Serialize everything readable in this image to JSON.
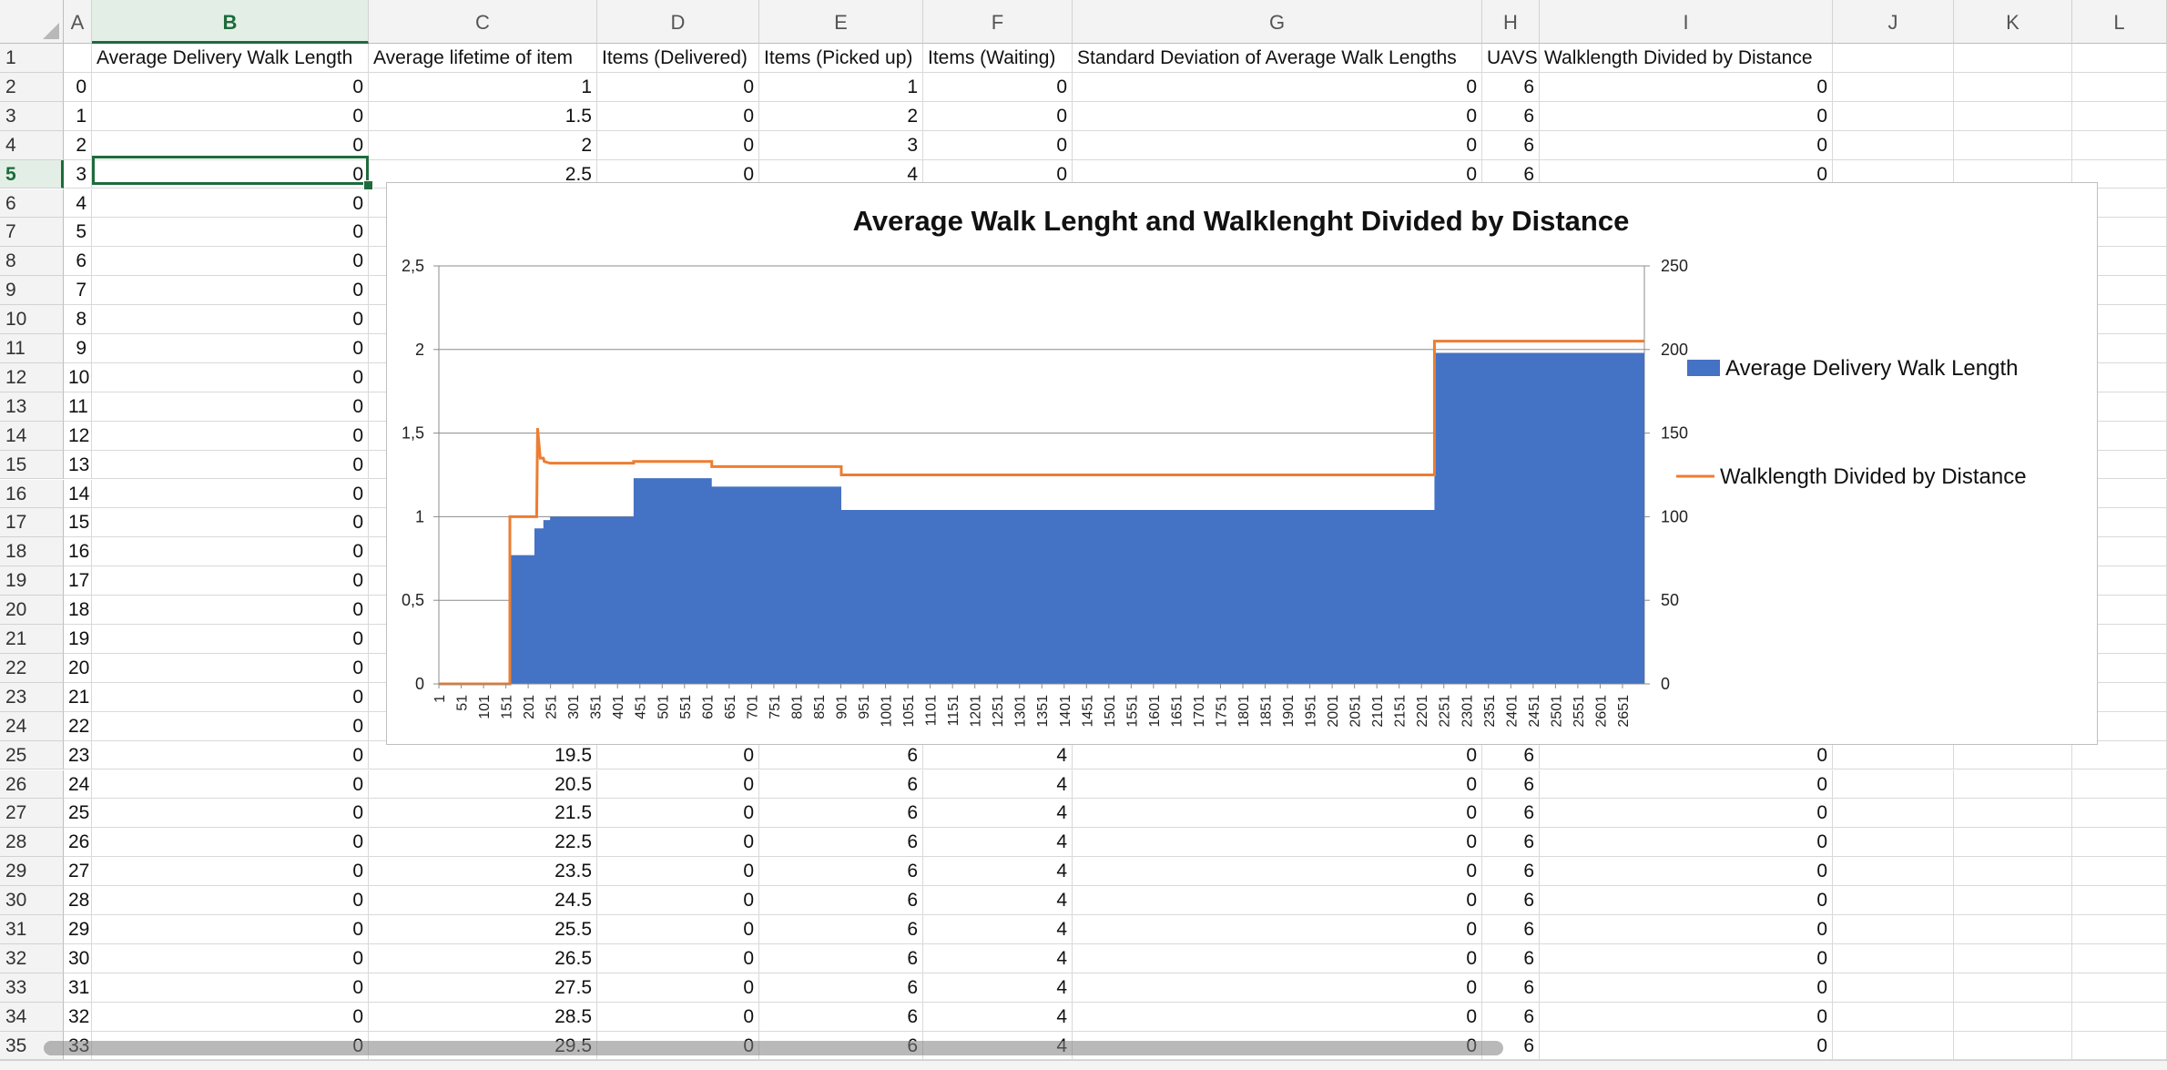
{
  "sheet": {
    "columns": [
      "A",
      "B",
      "C",
      "D",
      "E",
      "F",
      "G",
      "H",
      "I",
      "J",
      "K",
      "L"
    ],
    "selected_column": "B",
    "selected_row": "5",
    "header_row": [
      "",
      "Average Delivery Walk Length",
      "Average lifetime of item",
      "Items (Delivered)",
      "Items (Picked up)",
      "Items (Waiting)",
      "Standard Deviation of Average Walk Lengths",
      "UAVS",
      "Walklength Divided by Distance",
      "",
      "",
      ""
    ],
    "rows": [
      {
        "num": "1",
        "cells": [
          "",
          "",
          "",
          "",
          "",
          "",
          "",
          "",
          "",
          "",
          "",
          ""
        ]
      },
      {
        "num": "2",
        "cells": [
          "0",
          "0",
          "1",
          "0",
          "1",
          "0",
          "0",
          "6",
          "0",
          "",
          "",
          ""
        ]
      },
      {
        "num": "3",
        "cells": [
          "1",
          "0",
          "1.5",
          "0",
          "2",
          "0",
          "0",
          "6",
          "0",
          "",
          "",
          ""
        ]
      },
      {
        "num": "4",
        "cells": [
          "2",
          "0",
          "2",
          "0",
          "3",
          "0",
          "0",
          "6",
          "0",
          "",
          "",
          ""
        ]
      },
      {
        "num": "5",
        "cells": [
          "3",
          "0",
          "2.5",
          "0",
          "4",
          "0",
          "0",
          "6",
          "0",
          "",
          "",
          ""
        ]
      },
      {
        "num": "6",
        "cells": [
          "4",
          "0",
          "",
          "",
          "",
          "",
          "",
          "",
          "",
          "",
          "",
          ""
        ]
      },
      {
        "num": "7",
        "cells": [
          "5",
          "0",
          "",
          "",
          "",
          "",
          "",
          "",
          "",
          "",
          "",
          ""
        ]
      },
      {
        "num": "8",
        "cells": [
          "6",
          "0",
          "",
          "",
          "",
          "",
          "",
          "",
          "",
          "",
          "",
          ""
        ]
      },
      {
        "num": "9",
        "cells": [
          "7",
          "0",
          "",
          "",
          "",
          "",
          "",
          "",
          "",
          "",
          "",
          ""
        ]
      },
      {
        "num": "10",
        "cells": [
          "8",
          "0",
          "",
          "",
          "",
          "",
          "",
          "",
          "",
          "",
          "",
          ""
        ]
      },
      {
        "num": "11",
        "cells": [
          "9",
          "0",
          "",
          "",
          "",
          "",
          "",
          "",
          "",
          "",
          "",
          ""
        ]
      },
      {
        "num": "12",
        "cells": [
          "10",
          "0",
          "",
          "",
          "",
          "",
          "",
          "",
          "",
          "",
          "",
          ""
        ]
      },
      {
        "num": "13",
        "cells": [
          "11",
          "0",
          "",
          "",
          "",
          "",
          "",
          "",
          "",
          "",
          "",
          ""
        ]
      },
      {
        "num": "14",
        "cells": [
          "12",
          "0",
          "",
          "",
          "",
          "",
          "",
          "",
          "",
          "",
          "",
          ""
        ]
      },
      {
        "num": "15",
        "cells": [
          "13",
          "0",
          "",
          "",
          "",
          "",
          "",
          "",
          "",
          "",
          "",
          ""
        ]
      },
      {
        "num": "16",
        "cells": [
          "14",
          "0",
          "",
          "",
          "",
          "",
          "",
          "",
          "",
          "",
          "",
          ""
        ]
      },
      {
        "num": "17",
        "cells": [
          "15",
          "0",
          "",
          "",
          "",
          "",
          "",
          "",
          "",
          "",
          "",
          ""
        ]
      },
      {
        "num": "18",
        "cells": [
          "16",
          "0",
          "",
          "",
          "",
          "",
          "",
          "",
          "",
          "",
          "",
          ""
        ]
      },
      {
        "num": "19",
        "cells": [
          "17",
          "0",
          "",
          "",
          "",
          "",
          "",
          "",
          "",
          "",
          "",
          ""
        ]
      },
      {
        "num": "20",
        "cells": [
          "18",
          "0",
          "",
          "",
          "",
          "",
          "",
          "",
          "",
          "",
          "",
          ""
        ]
      },
      {
        "num": "21",
        "cells": [
          "19",
          "0",
          "",
          "",
          "",
          "",
          "",
          "",
          "",
          "",
          "",
          ""
        ]
      },
      {
        "num": "22",
        "cells": [
          "20",
          "0",
          "",
          "",
          "",
          "",
          "",
          "",
          "",
          "",
          "",
          ""
        ]
      },
      {
        "num": "23",
        "cells": [
          "21",
          "0",
          "",
          "",
          "",
          "",
          "",
          "",
          "",
          "",
          "",
          ""
        ]
      },
      {
        "num": "24",
        "cells": [
          "22",
          "0",
          "",
          "",
          "",
          "",
          "",
          "",
          "",
          "",
          "",
          ""
        ]
      },
      {
        "num": "25",
        "cells": [
          "23",
          "0",
          "19.5",
          "0",
          "6",
          "4",
          "0",
          "6",
          "0",
          "",
          "",
          ""
        ]
      },
      {
        "num": "26",
        "cells": [
          "24",
          "0",
          "20.5",
          "0",
          "6",
          "4",
          "0",
          "6",
          "0",
          "",
          "",
          ""
        ]
      },
      {
        "num": "27",
        "cells": [
          "25",
          "0",
          "21.5",
          "0",
          "6",
          "4",
          "0",
          "6",
          "0",
          "",
          "",
          ""
        ]
      },
      {
        "num": "28",
        "cells": [
          "26",
          "0",
          "22.5",
          "0",
          "6",
          "4",
          "0",
          "6",
          "0",
          "",
          "",
          ""
        ]
      },
      {
        "num": "29",
        "cells": [
          "27",
          "0",
          "23.5",
          "0",
          "6",
          "4",
          "0",
          "6",
          "0",
          "",
          "",
          ""
        ]
      },
      {
        "num": "30",
        "cells": [
          "28",
          "0",
          "24.5",
          "0",
          "6",
          "4",
          "0",
          "6",
          "0",
          "",
          "",
          ""
        ]
      },
      {
        "num": "31",
        "cells": [
          "29",
          "0",
          "25.5",
          "0",
          "6",
          "4",
          "0",
          "6",
          "0",
          "",
          "",
          ""
        ]
      },
      {
        "num": "32",
        "cells": [
          "30",
          "0",
          "26.5",
          "0",
          "6",
          "4",
          "0",
          "6",
          "0",
          "",
          "",
          ""
        ]
      },
      {
        "num": "33",
        "cells": [
          "31",
          "0",
          "27.5",
          "0",
          "6",
          "4",
          "0",
          "6",
          "0",
          "",
          "",
          ""
        ]
      },
      {
        "num": "34",
        "cells": [
          "32",
          "0",
          "28.5",
          "0",
          "6",
          "4",
          "0",
          "6",
          "0",
          "",
          "",
          ""
        ]
      },
      {
        "num": "35",
        "cells": [
          "33",
          "0",
          "29.5",
          "0",
          "6",
          "4",
          "0",
          "6",
          "0",
          "",
          "",
          ""
        ]
      }
    ]
  },
  "chart_data": {
    "type": "area",
    "title": "Average Walk Lenght and Walklenght Divided by Distance",
    "xlabel": "",
    "ylabel": "",
    "x_tick_labels": [
      "1",
      "51",
      "101",
      "151",
      "201",
      "251",
      "301",
      "351",
      "401",
      "451",
      "501",
      "551",
      "601",
      "651",
      "701",
      "751",
      "801",
      "851",
      "901",
      "951",
      "1001",
      "1051",
      "1101",
      "1151",
      "1201",
      "1251",
      "1301",
      "1351",
      "1401",
      "1451",
      "1501",
      "1551",
      "1601",
      "1651",
      "1701",
      "1751",
      "1801",
      "1851",
      "1901",
      "1951",
      "2001",
      "2051",
      "2101",
      "2151",
      "2201",
      "2251",
      "2301",
      "2351",
      "2401",
      "2451",
      "2501",
      "2551",
      "2601",
      "2651"
    ],
    "x_range": [
      1,
      2700
    ],
    "left_axis": {
      "range": [
        0,
        2.5
      ],
      "ticks": [
        "0",
        "0,5",
        "1",
        "1,5",
        "2",
        "2,5"
      ]
    },
    "right_axis": {
      "range": [
        0,
        250
      ],
      "ticks": [
        "0",
        "50",
        "100",
        "150",
        "200",
        "250"
      ]
    },
    "grid": true,
    "legend_position": "right",
    "series": [
      {
        "name": "Average Delivery Walk Length",
        "kind": "area",
        "axis": "left",
        "color": "#4472c4",
        "points": [
          [
            1,
            0
          ],
          [
            160,
            0
          ],
          [
            160,
            0.77
          ],
          [
            215,
            0.77
          ],
          [
            215,
            0.93
          ],
          [
            235,
            0.93
          ],
          [
            235,
            0.98
          ],
          [
            250,
            0.98
          ],
          [
            250,
            1.0
          ],
          [
            437,
            1.0
          ],
          [
            437,
            1.23
          ],
          [
            612,
            1.23
          ],
          [
            612,
            1.18
          ],
          [
            902,
            1.18
          ],
          [
            902,
            1.04
          ],
          [
            2230,
            1.04
          ],
          [
            2230,
            1.98
          ],
          [
            2700,
            1.98
          ]
        ]
      },
      {
        "name": "Walklength Divided by Distance",
        "kind": "line",
        "axis": "right",
        "color": "#ed7d31",
        "points": [
          [
            1,
            0
          ],
          [
            160,
            0
          ],
          [
            160,
            100
          ],
          [
            220,
            100
          ],
          [
            222,
            153
          ],
          [
            228,
            135
          ],
          [
            235,
            135
          ],
          [
            237,
            133
          ],
          [
            250,
            132
          ],
          [
            437,
            132
          ],
          [
            437,
            133
          ],
          [
            612,
            133
          ],
          [
            612,
            130
          ],
          [
            902,
            130
          ],
          [
            902,
            125
          ],
          [
            2230,
            125
          ],
          [
            2230,
            205
          ],
          [
            2700,
            205
          ]
        ]
      }
    ]
  }
}
